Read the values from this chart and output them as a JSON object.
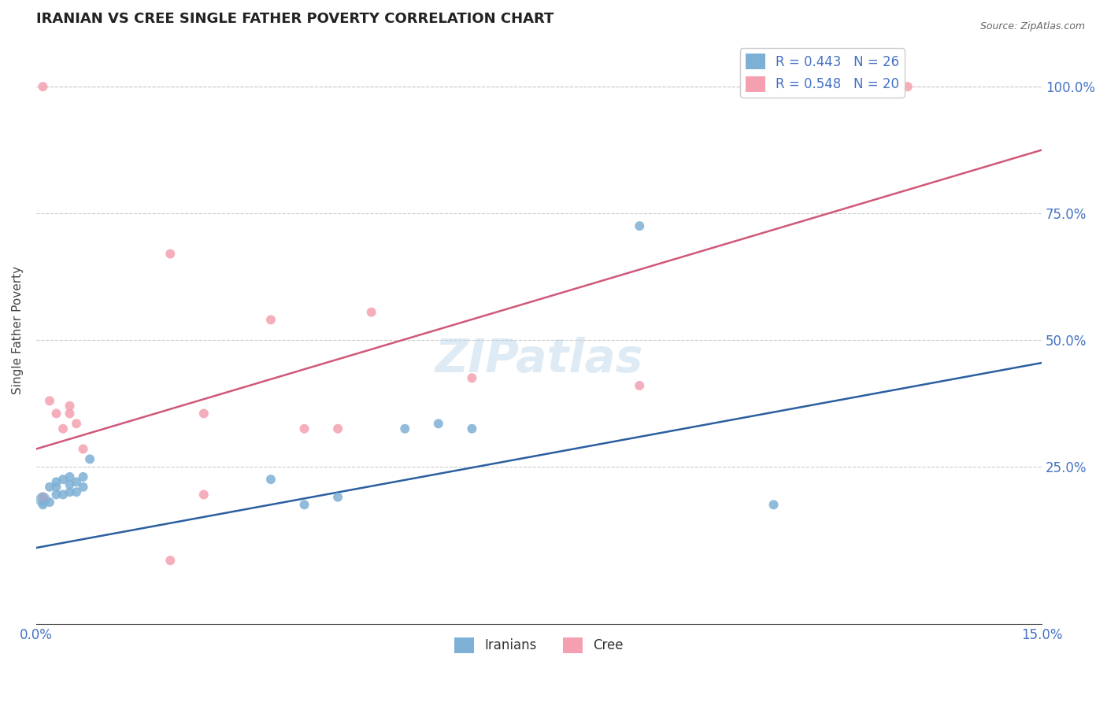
{
  "title": "IRANIAN VS CREE SINGLE FATHER POVERTY CORRELATION CHART",
  "source": "Source: ZipAtlas.com",
  "ylabel": "Single Father Poverty",
  "ytick_positions": [
    0.0,
    0.25,
    0.5,
    0.75,
    1.0
  ],
  "ytick_labels": [
    "",
    "25.0%",
    "50.0%",
    "75.0%",
    "100.0%"
  ],
  "xmin": 0.0,
  "xmax": 0.15,
  "ymin": -0.06,
  "ymax": 1.1,
  "iranian_color": "#7EB0D5",
  "cree_color": "#F4A0B0",
  "iranian_line_color": "#2B5FA0",
  "cree_line_color": "#D05878",
  "legend_R_iranian": "R = 0.443",
  "legend_N_iranian": "N = 26",
  "legend_R_cree": "R = 0.548",
  "legend_N_cree": "N = 20",
  "watermark": "ZIPatlas",
  "iranian_x": [
    0.001,
    0.001,
    0.001,
    0.002,
    0.002,
    0.003,
    0.003,
    0.003,
    0.004,
    0.004,
    0.005,
    0.005,
    0.005,
    0.006,
    0.006,
    0.007,
    0.007,
    0.008,
    0.035,
    0.04,
    0.045,
    0.055,
    0.06,
    0.065,
    0.09,
    0.11
  ],
  "iranian_y": [
    0.175,
    0.185,
    0.19,
    0.18,
    0.21,
    0.195,
    0.21,
    0.22,
    0.195,
    0.225,
    0.2,
    0.215,
    0.23,
    0.2,
    0.22,
    0.21,
    0.23,
    0.265,
    0.225,
    0.175,
    0.19,
    0.325,
    0.335,
    0.325,
    0.725,
    0.175
  ],
  "cree_x": [
    0.001,
    0.002,
    0.003,
    0.004,
    0.005,
    0.005,
    0.006,
    0.007,
    0.02,
    0.02,
    0.025,
    0.035,
    0.04,
    0.045,
    0.05,
    0.065,
    0.09,
    0.025,
    0.13,
    0.001
  ],
  "cree_y": [
    0.19,
    0.38,
    0.355,
    0.325,
    0.355,
    0.37,
    0.335,
    0.285,
    0.67,
    0.065,
    0.195,
    0.54,
    0.325,
    0.325,
    0.555,
    0.425,
    0.41,
    0.355,
    1.0,
    1.0
  ],
  "iranian_line_x": [
    0.0,
    0.15
  ],
  "iranian_line_y": [
    0.09,
    0.455
  ],
  "cree_line_x": [
    0.0,
    0.15
  ],
  "cree_line_y": [
    0.285,
    0.875
  ],
  "marker_size": 75,
  "large_marker_size": 180,
  "tick_label_color": "#4472C4",
  "title_fontsize": 13,
  "axis_label_fontsize": 11,
  "tick_fontsize": 12,
  "legend_fontsize": 12,
  "source_fontsize": 9
}
